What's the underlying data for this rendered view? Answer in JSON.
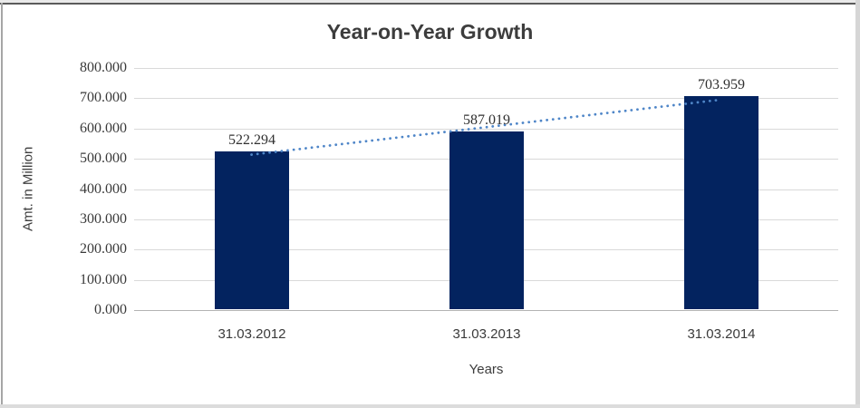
{
  "chart_data": {
    "type": "bar",
    "title": "Year-on-Year Growth",
    "xlabel": "Years",
    "ylabel": "Amt. in Million",
    "categories": [
      "31.03.2012",
      "31.03.2013",
      "31.03.2014"
    ],
    "values": [
      522.294,
      587.019,
      703.959
    ],
    "data_labels": [
      "522.294",
      "587.019",
      "703.959"
    ],
    "ylim": [
      0,
      800
    ],
    "ytick_step": 100,
    "ytick_labels": [
      "0.000",
      "100.000",
      "200.000",
      "300.000",
      "400.000",
      "500.000",
      "600.000",
      "700.000",
      "800.000"
    ],
    "grid": "horizontal-gridlines",
    "legend_position": "none",
    "trendline": {
      "type": "linear",
      "style": "dotted"
    },
    "colors": {
      "bar": "#03235f",
      "trendline": "#4f86c8",
      "gridline": "#d9d9d9",
      "axis_line": "#b3b3b3",
      "text": "#3d3d3d"
    }
  }
}
